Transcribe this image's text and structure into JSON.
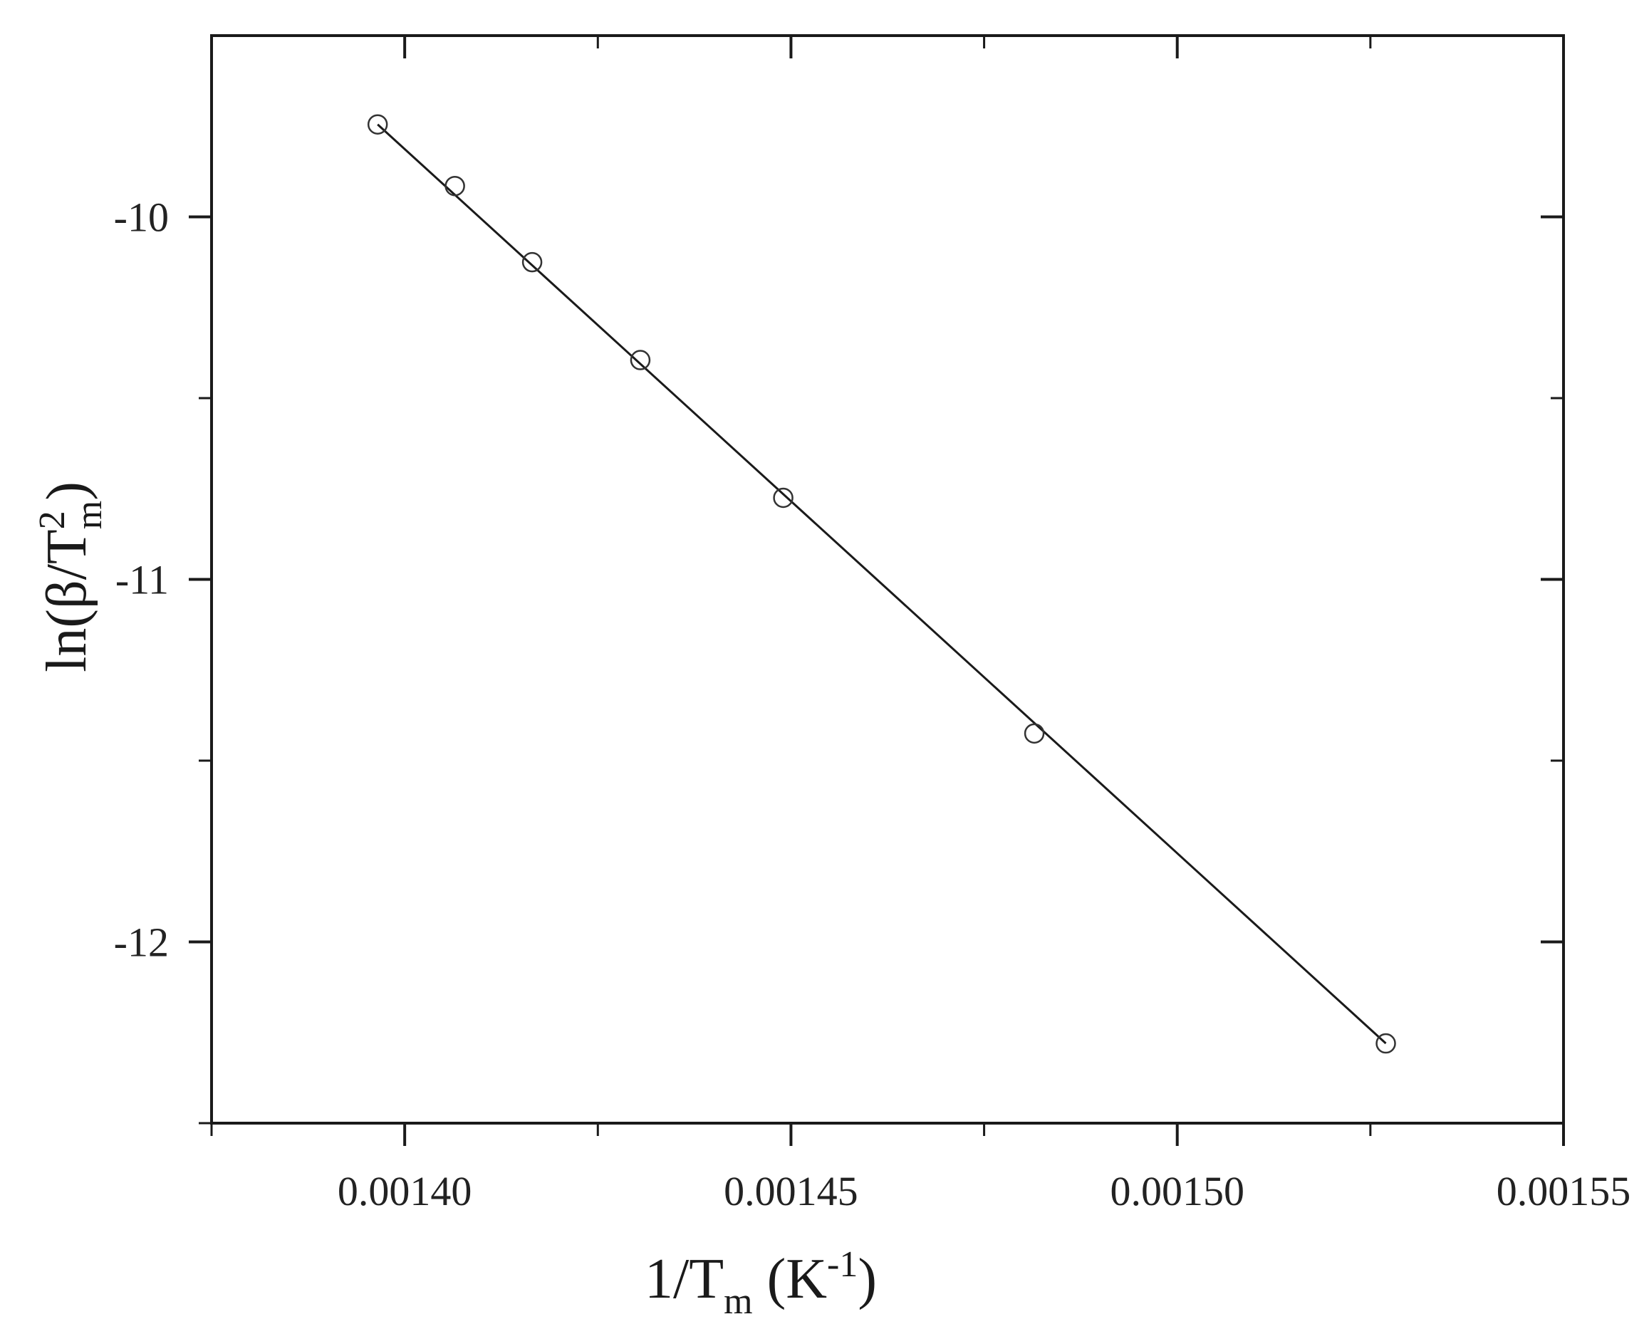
{
  "chart_data": {
    "type": "scatter",
    "title": "",
    "xlabel": {
      "prefix": "1/T",
      "subscript": "m",
      "unit_open": " (K",
      "superscript": "-1",
      "unit_close": ")"
    },
    "ylabel": {
      "prefix": "ln(β/T",
      "superscript": "2",
      "subscript": "m",
      "suffix": ")"
    },
    "xlim": [
      0.001375,
      0.00155
    ],
    "ylim": [
      -12.5,
      -9.5
    ],
    "x_major_ticks": [
      0.0014,
      0.00145,
      0.0015,
      0.00155
    ],
    "x_tick_labels": [
      "0.00140",
      "0.00145",
      "0.00150",
      "0.00155"
    ],
    "x_minor_ticks": [
      0.001375,
      0.001425,
      0.001475,
      0.001525
    ],
    "y_major_ticks": [
      -10,
      -11,
      -12
    ],
    "y_tick_labels": [
      "-10",
      "-11",
      "-12"
    ],
    "y_minor_ticks": [
      -10.5,
      -11.5,
      -12.5
    ],
    "grid": false,
    "legend": "none",
    "marker": "open-circle",
    "series": [
      {
        "points": [
          {
            "x": 0.0013965,
            "y": -9.745
          },
          {
            "x": 0.0014065,
            "y": -9.915
          },
          {
            "x": 0.0014165,
            "y": -10.125
          },
          {
            "x": 0.0014305,
            "y": -10.395
          },
          {
            "x": 0.001449,
            "y": -10.775
          },
          {
            "x": 0.0014815,
            "y": -11.425
          },
          {
            "x": 0.001527,
            "y": -12.28
          }
        ]
      }
    ],
    "fit_line": {
      "x": [
        0.0013965,
        0.001527
      ],
      "y": [
        -9.745,
        -12.28
      ]
    },
    "colors": {
      "axis": "#1a1a1a",
      "marker": "#333333",
      "line": "#1a1a1a"
    }
  }
}
